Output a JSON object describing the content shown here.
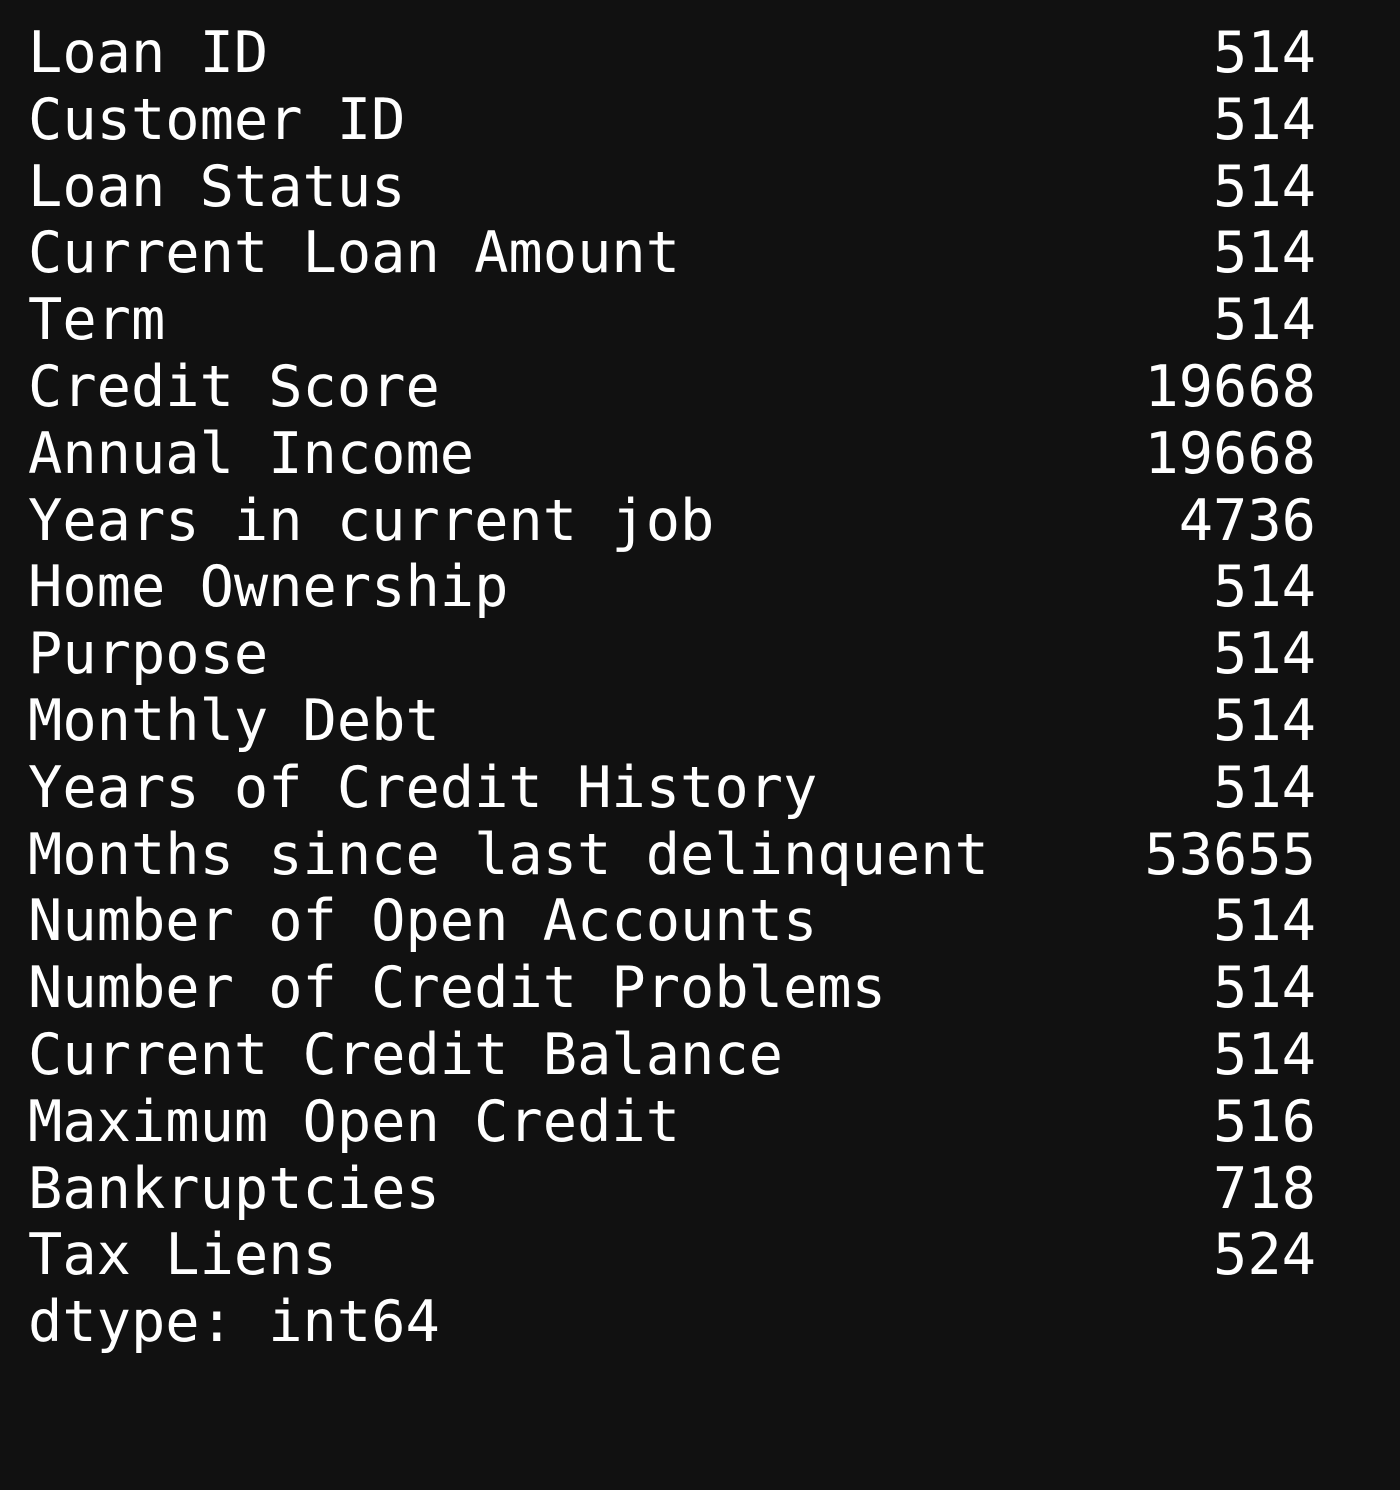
{
  "output": {
    "rows": [
      {
        "label": "Loan ID",
        "value": "514"
      },
      {
        "label": "Customer ID",
        "value": "514"
      },
      {
        "label": "Loan Status",
        "value": "514"
      },
      {
        "label": "Current Loan Amount",
        "value": "514"
      },
      {
        "label": "Term",
        "value": "514"
      },
      {
        "label": "Credit Score",
        "value": "19668"
      },
      {
        "label": "Annual Income",
        "value": "19668"
      },
      {
        "label": "Years in current job",
        "value": "4736"
      },
      {
        "label": "Home Ownership",
        "value": "514"
      },
      {
        "label": "Purpose",
        "value": "514"
      },
      {
        "label": "Monthly Debt",
        "value": "514"
      },
      {
        "label": "Years of Credit History",
        "value": "514"
      },
      {
        "label": "Months since last delinquent",
        "value": "53655"
      },
      {
        "label": "Number of Open Accounts",
        "value": "514"
      },
      {
        "label": "Number of Credit Problems",
        "value": "514"
      },
      {
        "label": "Current Credit Balance",
        "value": "514"
      },
      {
        "label": "Maximum Open Credit",
        "value": "516"
      },
      {
        "label": "Bankruptcies",
        "value": "718"
      },
      {
        "label": "Tax Liens",
        "value": "524"
      }
    ],
    "dtype_line": "dtype: int64"
  },
  "colors": {
    "background": "#111111",
    "text": "#ffffff"
  }
}
